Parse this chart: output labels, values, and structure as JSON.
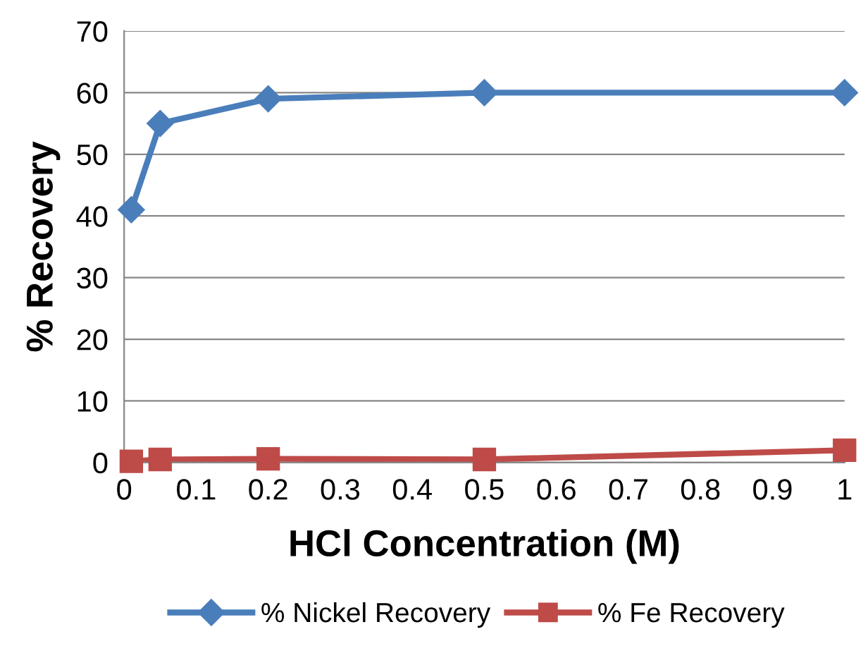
{
  "chart_data": {
    "type": "line",
    "xlabel": "HCl Concentration (M)",
    "ylabel": "% Recovery",
    "series": [
      {
        "name": "% Nickel Recovery",
        "color": "#4a7ebb",
        "marker": "diamond",
        "x": [
          0.01,
          0.05,
          0.2,
          0.5,
          1
        ],
        "values": [
          41,
          55,
          59,
          60,
          60
        ]
      },
      {
        "name": "% Fe Recovery",
        "color": "#be4b48",
        "marker": "square",
        "x": [
          0.01,
          0.05,
          0.2,
          0.5,
          1
        ],
        "values": [
          0.2,
          0.5,
          0.6,
          0.5,
          2
        ]
      }
    ],
    "xlim": [
      0,
      1
    ],
    "xticks": [
      0,
      0.1,
      0.2,
      0.3,
      0.4,
      0.5,
      0.6,
      0.7,
      0.8,
      0.9,
      1
    ],
    "ylim": [
      0,
      70
    ],
    "yticks": [
      0,
      10,
      20,
      30,
      40,
      50,
      60,
      70
    ],
    "grid": "y",
    "legend": "bottom",
    "line_style": "solid"
  }
}
